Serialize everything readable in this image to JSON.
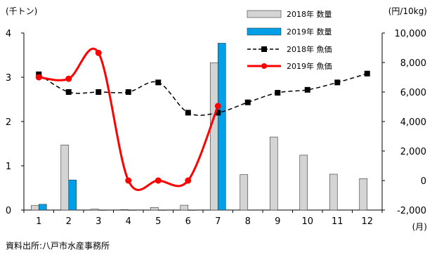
{
  "chart_data": {
    "type": "bar",
    "categories": [
      "1",
      "2",
      "3",
      "4",
      "5",
      "6",
      "7",
      "8",
      "9",
      "10",
      "11",
      "12"
    ],
    "xunit": "(月)",
    "left_axis": {
      "unit": "(千トン)",
      "range": [
        0,
        4
      ],
      "ticks": [
        "0",
        "1",
        "2",
        "3",
        "4"
      ]
    },
    "right_axis": {
      "unit": "(円/10kg)",
      "range": [
        -2000,
        10000
      ],
      "ticks": [
        "-2,000",
        "0",
        "2,000",
        "4,000",
        "6,000",
        "8,000",
        "10,000"
      ]
    },
    "series": [
      {
        "name": "2018年 数量",
        "kind": "bar",
        "axis": "left",
        "color": "#d4d4d4",
        "values": [
          0.1,
          1.47,
          0.02,
          0.01,
          0.06,
          0.11,
          3.33,
          0.8,
          1.65,
          1.24,
          0.81,
          0.71
        ]
      },
      {
        "name": "2019年 数量",
        "kind": "bar",
        "axis": "left",
        "color": "#00a0e9",
        "values": [
          0.13,
          0.68,
          0,
          0,
          0,
          0,
          3.77,
          null,
          null,
          null,
          null,
          null
        ]
      },
      {
        "name": "2018年 魚価",
        "kind": "line",
        "axis": "right",
        "color": "#000000",
        "dash": true,
        "values": [
          7200,
          6000,
          6000,
          6000,
          6650,
          4600,
          4600,
          5300,
          5950,
          6150,
          6650,
          7250
        ]
      },
      {
        "name": "2019年 魚価",
        "kind": "line",
        "axis": "right",
        "color": "#ff0000",
        "values": [
          7000,
          6900,
          8650,
          0,
          0,
          0,
          5050,
          null,
          null,
          null,
          null,
          null
        ]
      }
    ]
  },
  "source_note": "資料出所:八戸市水産事務所"
}
